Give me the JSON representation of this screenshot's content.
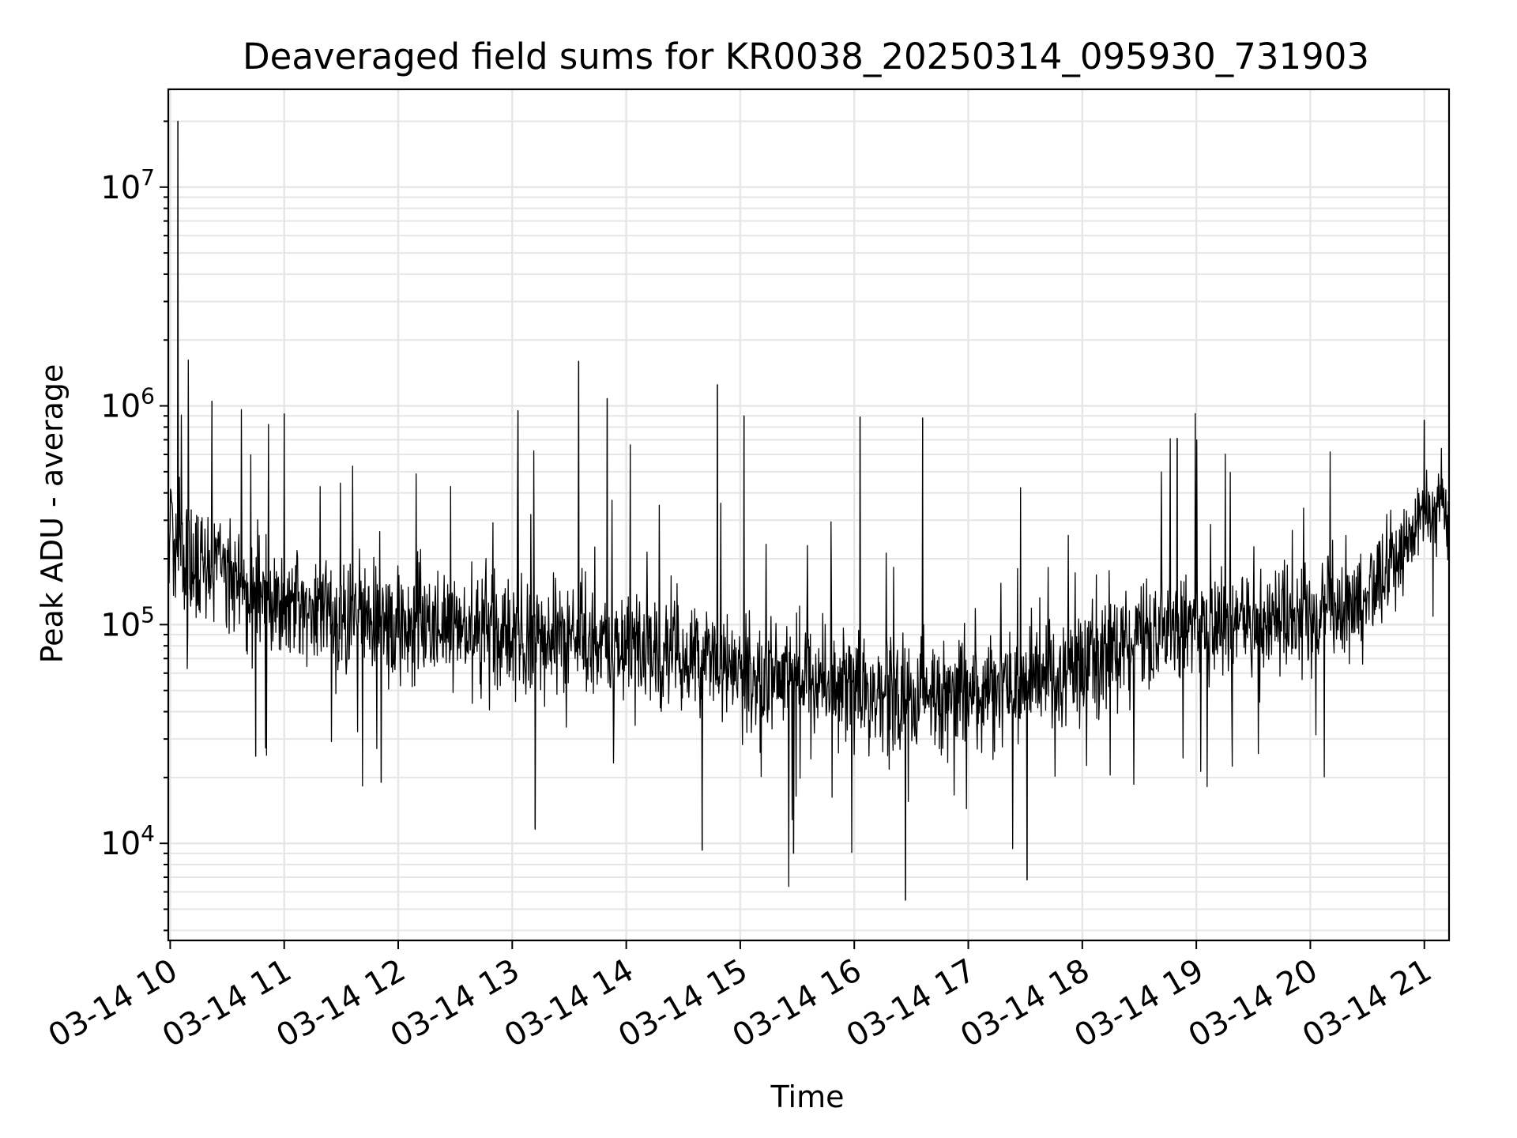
{
  "chart_data": {
    "type": "line",
    "title": "Deaveraged field sums for KR0038_20250314_095930_731903",
    "xlabel": "Time",
    "ylabel": "Peak ADU - average",
    "y_scale": "log",
    "ylim": [
      3600,
      28000000
    ],
    "y_ticks": [
      {
        "value": 10000,
        "base": "10",
        "exp": "4"
      },
      {
        "value": 100000,
        "base": "10",
        "exp": "5"
      },
      {
        "value": 1000000,
        "base": "10",
        "exp": "6"
      },
      {
        "value": 10000000,
        "base": "10",
        "exp": "7"
      }
    ],
    "xlim": [
      "2025-03-14 09:59",
      "2025-03-14 21:13"
    ],
    "x_tick_labels": [
      "03-14 10",
      "03-14 11",
      "03-14 12",
      "03-14 13",
      "03-14 14",
      "03-14 15",
      "03-14 16",
      "03-14 17",
      "03-14 18",
      "03-14 19",
      "03-14 20",
      "03-14 21"
    ],
    "grid": true,
    "line_color": "#000000",
    "grid_color": "#e6e6e6",
    "series": [
      {
        "x": [
          "2025-03-14 10:00",
          "2025-03-14 10:30",
          "2025-03-14 11:00",
          "2025-03-14 11:30",
          "2025-03-14 12:00",
          "2025-03-14 12:30",
          "2025-03-14 13:00",
          "2025-03-14 13:30",
          "2025-03-14 14:00",
          "2025-03-14 14:30",
          "2025-03-14 15:00",
          "2025-03-14 15:30",
          "2025-03-14 16:00",
          "2025-03-14 16:30",
          "2025-03-14 17:00",
          "2025-03-14 17:30",
          "2025-03-14 18:00",
          "2025-03-14 18:30",
          "2025-03-14 19:00",
          "2025-03-14 19:30",
          "2025-03-14 20:00",
          "2025-03-14 20:30",
          "2025-03-14 21:00",
          "2025-03-14 21:10"
        ],
        "y": [
          220000,
          170000,
          130000,
          110000,
          100000,
          95000,
          90000,
          85000,
          80000,
          70000,
          60000,
          55000,
          50000,
          45000,
          50000,
          55000,
          70000,
          85000,
          100000,
          105000,
          110000,
          130000,
          320000,
          330000
        ],
        "spikes": [
          {
            "x": "2025-03-14 10:04",
            "y": 20000000
          },
          {
            "x": "2025-03-14 10:22",
            "y": 1050000
          },
          {
            "x": "2025-03-14 11:00",
            "y": 920000
          },
          {
            "x": "2025-03-14 13:03",
            "y": 950000
          },
          {
            "x": "2025-03-14 13:35",
            "y": 1600000
          },
          {
            "x": "2025-03-14 13:50",
            "y": 1080000
          },
          {
            "x": "2025-03-14 14:48",
            "y": 1250000
          },
          {
            "x": "2025-03-14 15:02",
            "y": 900000
          },
          {
            "x": "2025-03-14 16:03",
            "y": 890000
          },
          {
            "x": "2025-03-14 16:36",
            "y": 880000
          },
          {
            "x": "2025-03-14 18:50",
            "y": 710000
          },
          {
            "x": "2025-03-14 21:00",
            "y": 860000
          },
          {
            "x": "2025-03-14 16:27",
            "y": 5500
          },
          {
            "x": "2025-03-14 17:31",
            "y": 6800
          },
          {
            "x": "2025-03-14 15:28",
            "y": 9000
          },
          {
            "x": "2025-03-14 14:40",
            "y": 9300
          },
          {
            "x": "2025-03-14 13:12",
            "y": 11600
          },
          {
            "x": "2025-03-14 10:45",
            "y": 25000
          },
          {
            "x": "2025-03-14 11:51",
            "y": 19000
          }
        ]
      }
    ]
  }
}
